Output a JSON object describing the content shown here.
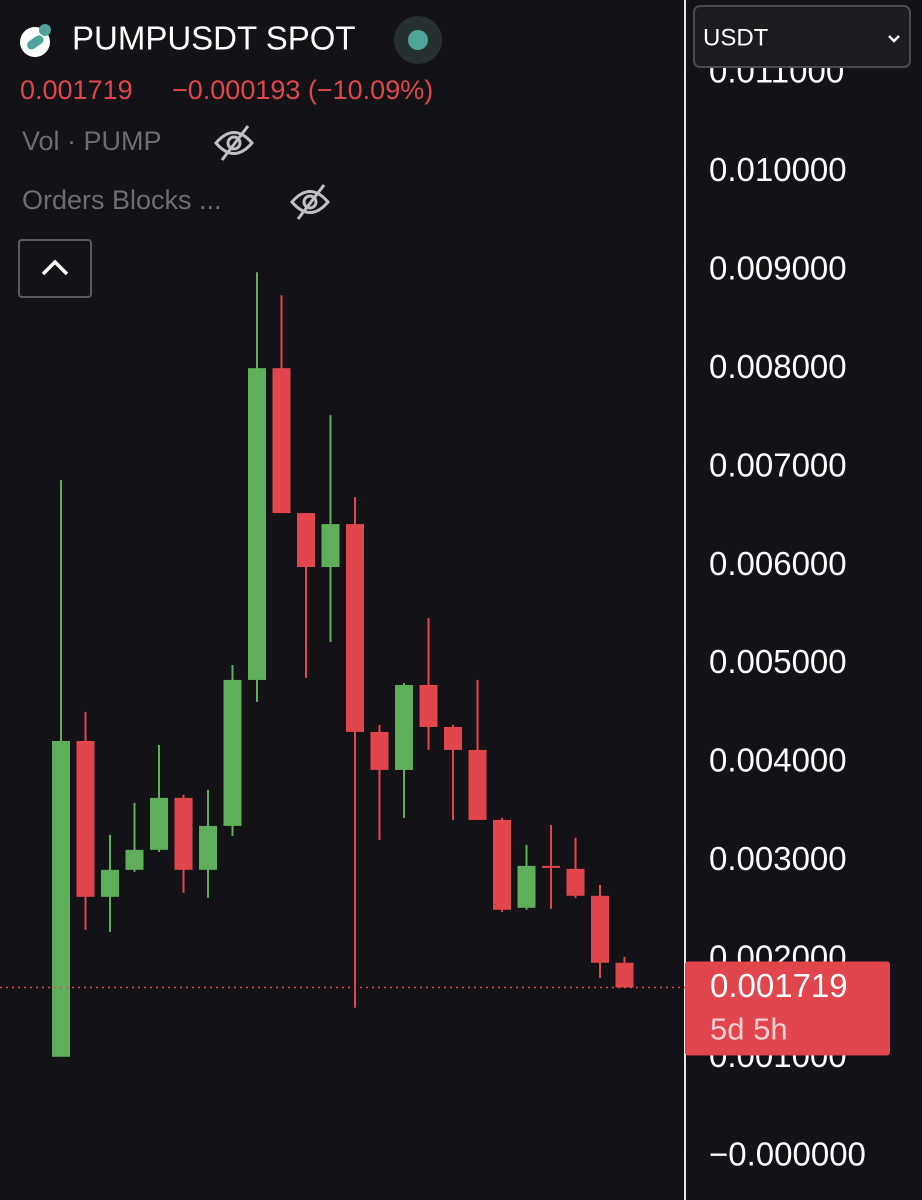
{
  "header": {
    "title": "PUMPUSDT SPOT",
    "price": "0.001719",
    "change": "−0.000193 (−10.09%)",
    "indicators": [
      "Vol · PUMP",
      "Orders Blocks ..."
    ],
    "currency": "USDT"
  },
  "chart_data": {
    "type": "candlestick",
    "open": [
      0.001015,
      0.004223,
      0.00264,
      0.002914,
      0.003117,
      0.003645,
      0.002914,
      0.00336,
      0.004843,
      0.00801,
      0.006538,
      0.00599,
      0.006426,
      0.004315,
      0.003929,
      0.004792,
      0.004365,
      0.004132,
      0.003421,
      0.002528,
      0.002954,
      0.002924,
      0.00265,
      0.00197
    ],
    "high": [
      0.006873,
      0.004518,
      0.003269,
      0.003594,
      0.004183,
      0.003675,
      0.003726,
      0.004995,
      0.008985,
      0.008751,
      0.006538,
      0.007533,
      0.0067,
      0.004386,
      0.004812,
      0.005472,
      0.004386,
      0.004843,
      0.003442,
      0.003168,
      0.003371,
      0.003239,
      0.002761,
      0.00203
    ],
    "low": [
      0.001015,
      0.002305,
      0.002284,
      0.002893,
      0.003096,
      0.00268,
      0.00263,
      0.003259,
      0.004619,
      0.006538,
      0.004863,
      0.005228,
      0.001513,
      0.003218,
      0.003442,
      0.004132,
      0.003421,
      0.003421,
      0.002487,
      0.002508,
      0.002518,
      0.00263,
      0.001817,
      0.001719
    ],
    "close": [
      0.004223,
      0.00264,
      0.002914,
      0.003117,
      0.003645,
      0.002914,
      0.00336,
      0.004843,
      0.00801,
      0.006538,
      0.00599,
      0.006426,
      0.004315,
      0.003929,
      0.004792,
      0.004365,
      0.004132,
      0.003421,
      0.002508,
      0.002954,
      0.002934,
      0.00265,
      0.00197,
      0.001719
    ],
    "up_color": "#5fae5a",
    "down_color": "#e0464c",
    "ylim": [
      -0.00044,
      0.01175
    ],
    "yticks": [
      {
        "value": 0.011,
        "label": "0.011000"
      },
      {
        "value": 0.01,
        "label": "0.010000"
      },
      {
        "value": 0.009,
        "label": "0.009000"
      },
      {
        "value": 0.008,
        "label": "0.008000"
      },
      {
        "value": 0.007,
        "label": "0.007000"
      },
      {
        "value": 0.006,
        "label": "0.006000"
      },
      {
        "value": 0.005,
        "label": "0.005000"
      },
      {
        "value": 0.004,
        "label": "0.004000"
      },
      {
        "value": 0.003,
        "label": "0.003000"
      },
      {
        "value": 0.002,
        "label": "0.002000"
      },
      {
        "value": 0.001,
        "label": "0.001000"
      },
      {
        "value": 0,
        "label": "−0.000000"
      }
    ],
    "last_price": 0.001719,
    "countdown": "5d 5h"
  }
}
